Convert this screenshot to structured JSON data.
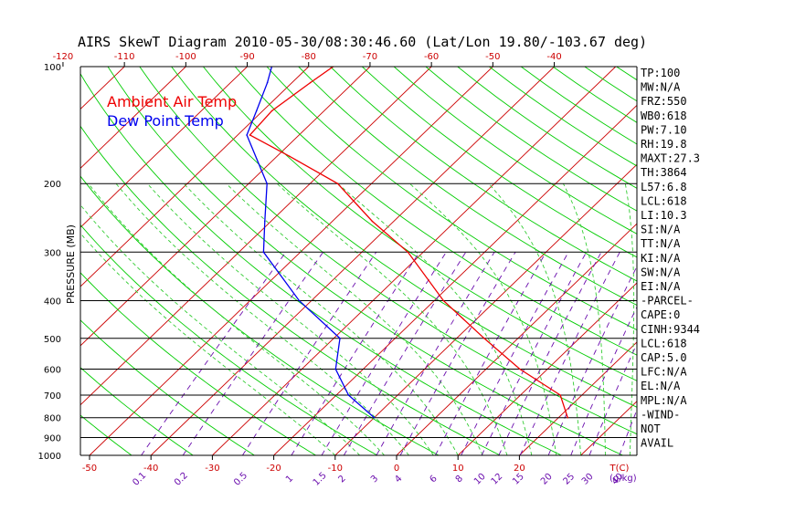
{
  "title": "AIRS SkewT Diagram 2010-05-30/08:30:46.60 (Lat/Lon 19.80/-103.67 deg)",
  "legend": [
    {
      "label": "Ambient Air Temp",
      "color": "#ee0000"
    },
    {
      "label": "Dew Point Temp",
      "color": "#0000ee"
    }
  ],
  "colors": {
    "temperature": "#ee0000",
    "dewpoint": "#0000ee",
    "isotherm": "#cc0000",
    "dry_adiabat": "#00cc00",
    "moist_adiabat": "#33cc33",
    "mixing_ratio": "#6a0dad",
    "isobar": "#000000"
  },
  "side_panel": [
    "TP:100",
    "MW:N/A",
    "FRZ:550",
    "WB0:618",
    "PW:7.10",
    "RH:19.8",
    "MAXT:27.3",
    "TH:3864",
    "L57:6.8",
    "LCL:618",
    "LI:10.3",
    "SI:N/A",
    "TT:N/A",
    "KI:N/A",
    "SW:N/A",
    "EI:N/A",
    "-PARCEL-",
    "CAPE:0",
    "CINH:9344",
    "LCL:618",
    "CAP:5.0",
    "LFC:N/A",
    "EL:N/A",
    "MPL:N/A",
    "-WIND-",
    "NOT",
    "AVAIL"
  ],
  "chart_data": {
    "type": "line",
    "title": "AIRS SkewT Diagram 2010-05-30/08:30:46.60 (Lat/Lon 19.80/-103.67 deg)",
    "ylabel": "PRESSURE (MB)",
    "xlabel": "T(C)",
    "mixing_ratio_unit": "(g/kg)",
    "y_scale": "log",
    "ylim": [
      1000,
      100
    ],
    "y_ticks": [
      100,
      200,
      300,
      400,
      500,
      600,
      700,
      800,
      900,
      1000
    ],
    "x_ticks_bottom": [
      -50,
      -40,
      -30,
      -20,
      -10,
      0,
      10,
      20
    ],
    "x_ticks_top": [
      -120,
      -110,
      -100,
      -90,
      -80,
      -70,
      -60,
      -50,
      -40
    ],
    "x_unit_label": "T(C)",
    "mixing_ratio_labels": [
      "0.1",
      "0.2",
      "0.5",
      "1",
      "1.5",
      "2",
      "3",
      "4",
      "6",
      "8",
      "10",
      "12",
      "15",
      "20",
      "25",
      "30",
      "40"
    ],
    "series": [
      {
        "name": "Ambient Air Temp",
        "pressure": [
          800,
          700,
          600,
          500,
          400,
          300,
          250,
          200,
          170,
          150,
          130,
          110,
          100
        ],
        "values": [
          21.5,
          16.5,
          5.5,
          -5.5,
          -18.5,
          -32.5,
          -43.5,
          -55.5,
          -68.0,
          -78.0,
          -78.5,
          -77.0,
          -76.0
        ]
      },
      {
        "name": "Dew Point Temp",
        "pressure": [
          800,
          700,
          600,
          500,
          400,
          300,
          250,
          200,
          150,
          130,
          110,
          100
        ],
        "values": [
          -10.0,
          -18.0,
          -24.5,
          -29.0,
          -42.0,
          -56.0,
          -61.0,
          -67.0,
          -78.5,
          -81.0,
          -84.0,
          -86.0
        ]
      }
    ]
  }
}
